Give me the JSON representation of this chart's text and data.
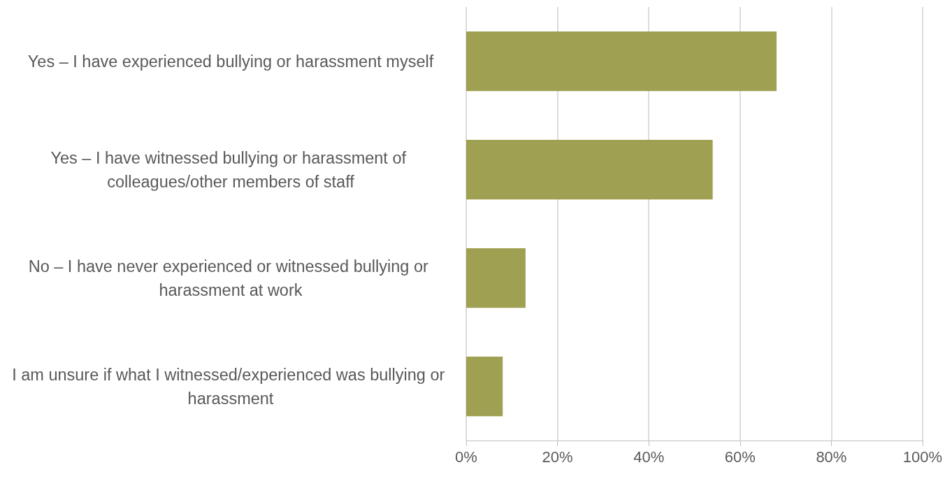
{
  "chart_data": {
    "type": "bar",
    "orientation": "horizontal",
    "categories": [
      "Yes – I have experienced bullying or harassment myself",
      "Yes – I have witnessed bullying or harassment of colleagues/other members of staff",
      "No – I have never experienced or witnessed bullying or harassment at work",
      "I am unsure if what I witnessed/experienced was bullying or harassment"
    ],
    "values": [
      68,
      54,
      13,
      8
    ],
    "color": "#a0a052",
    "xlim": [
      0,
      100
    ],
    "xticks": [
      {
        "value": 0,
        "label": "0%"
      },
      {
        "value": 20,
        "label": "20%"
      },
      {
        "value": 40,
        "label": "40%"
      },
      {
        "value": 60,
        "label": "60%"
      },
      {
        "value": 80,
        "label": "80%"
      },
      {
        "value": 100,
        "label": "100%"
      }
    ],
    "grid": "x"
  }
}
